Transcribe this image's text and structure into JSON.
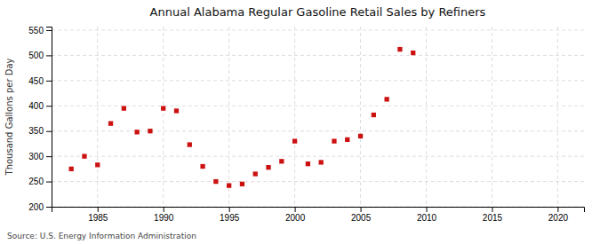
{
  "chart_data": {
    "type": "scatter",
    "title": "Annual Alabama Regular Gasoline Retail Sales by Refiners",
    "ylabel": "Thousand Gallons per Day",
    "source": "Source: U.S. Energy Information Administration",
    "x": [
      1983,
      1984,
      1985,
      1986,
      1987,
      1988,
      1989,
      1990,
      1991,
      1992,
      1993,
      1994,
      1995,
      1996,
      1997,
      1998,
      1999,
      2000,
      2001,
      2002,
      2003,
      2004,
      2005,
      2006,
      2007,
      2008,
      2009
    ],
    "values": [
      275,
      300,
      283,
      365,
      395,
      348,
      350,
      395,
      390,
      323,
      280,
      250,
      242,
      245,
      265,
      278,
      290,
      330,
      285,
      288,
      330,
      333,
      340,
      382,
      413,
      512,
      505
    ],
    "color": "#cc1111",
    "marker": "square",
    "xlim": [
      1981.5,
      2022
    ],
    "ylim": [
      200,
      557
    ],
    "xticks": [
      1985,
      1990,
      1995,
      2000,
      2005,
      2010,
      2015,
      2020
    ],
    "yticks": [
      200,
      250,
      300,
      350,
      400,
      450,
      500,
      550
    ],
    "grid": true
  }
}
